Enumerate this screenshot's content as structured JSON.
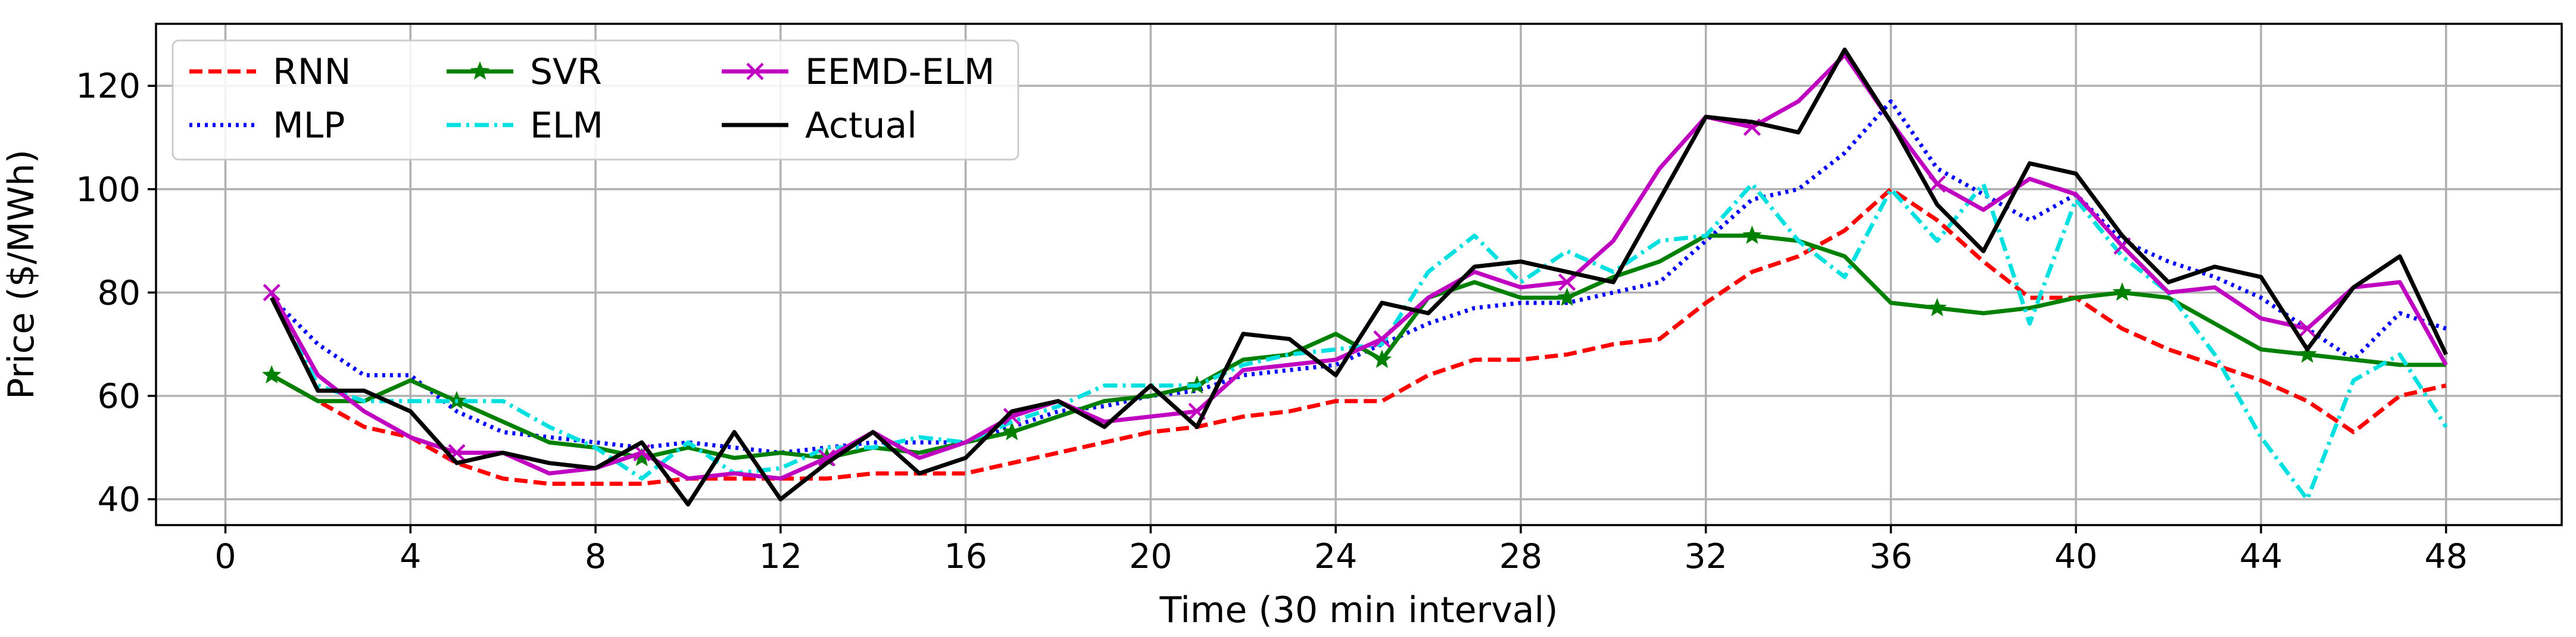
{
  "chart_data": {
    "type": "line",
    "title": "",
    "xlabel": "Time (30 min interval)",
    "ylabel": "Price ($/MWh)",
    "xlim": [
      -1.5,
      50.5
    ],
    "ylim": [
      35,
      132
    ],
    "xticks": [
      0,
      4,
      8,
      12,
      16,
      20,
      24,
      28,
      32,
      36,
      40,
      44,
      48
    ],
    "yticks": [
      40,
      60,
      80,
      100,
      120
    ],
    "grid": true,
    "legend_position": "top-left",
    "x": [
      1,
      2,
      3,
      4,
      5,
      6,
      7,
      8,
      9,
      10,
      11,
      12,
      13,
      14,
      15,
      16,
      17,
      18,
      19,
      20,
      21,
      22,
      23,
      24,
      25,
      26,
      27,
      28,
      29,
      30,
      31,
      32,
      33,
      34,
      35,
      36,
      37,
      38,
      39,
      40,
      41,
      42,
      43,
      44,
      45,
      46,
      47,
      48
    ],
    "series": [
      {
        "name": "RNN",
        "color": "#ff0000",
        "style": "dashed",
        "marker": "none",
        "values": [
          64,
          59,
          54,
          52,
          47,
          44,
          43,
          43,
          43,
          44,
          44,
          44,
          44,
          45,
          45,
          45,
          47,
          49,
          51,
          53,
          54,
          56,
          57,
          59,
          59,
          64,
          67,
          67,
          68,
          70,
          71,
          78,
          84,
          87,
          92,
          100,
          94,
          86,
          79,
          79,
          73,
          69,
          66,
          63,
          59,
          53,
          60,
          62
        ]
      },
      {
        "name": "MLP",
        "color": "#0000ff",
        "style": "dotted",
        "marker": "none",
        "values": [
          79,
          70,
          64,
          64,
          57,
          53,
          52,
          51,
          50,
          51,
          50,
          49,
          50,
          51,
          51,
          51,
          54,
          57,
          58,
          60,
          61,
          64,
          65,
          66,
          70,
          74,
          77,
          78,
          78,
          80,
          82,
          90,
          98,
          100,
          107,
          117,
          104,
          99,
          94,
          99,
          90,
          86,
          83,
          79,
          73,
          67,
          76,
          73
        ]
      },
      {
        "name": "SVR",
        "color": "#008000",
        "style": "solid",
        "marker": "star",
        "values": [
          64,
          59,
          59,
          63,
          59,
          55,
          51,
          50,
          48,
          50,
          48,
          49,
          48,
          50,
          49,
          51,
          53,
          56,
          59,
          60,
          62,
          67,
          68,
          72,
          67,
          79,
          82,
          79,
          79,
          83,
          86,
          91,
          91,
          90,
          87,
          78,
          77,
          76,
          77,
          79,
          80,
          79,
          74,
          69,
          68,
          67,
          66,
          66
        ]
      },
      {
        "name": "ELM",
        "color": "#00e0e0",
        "style": "dashdot",
        "marker": "none",
        "values": [
          80,
          62,
          59,
          59,
          59,
          59,
          54,
          50,
          44,
          51,
          45,
          46,
          50,
          50,
          52,
          51,
          55,
          58,
          62,
          62,
          62,
          66,
          68,
          69,
          70,
          84,
          91,
          82,
          88,
          84,
          90,
          91,
          101,
          90,
          83,
          100,
          90,
          101,
          74,
          98,
          87,
          80,
          68,
          52,
          40,
          63,
          68,
          54
        ]
      },
      {
        "name": "EEMD-ELM",
        "color": "#c000c0",
        "style": "solid",
        "marker": "x",
        "values": [
          80,
          64,
          57,
          52,
          49,
          49,
          45,
          46,
          49,
          44,
          45,
          44,
          48,
          53,
          48,
          51,
          56,
          59,
          55,
          56,
          57,
          65,
          66,
          67,
          71,
          79,
          84,
          81,
          82,
          90,
          104,
          114,
          112,
          117,
          126,
          113,
          101,
          96,
          102,
          99,
          89,
          80,
          81,
          75,
          73,
          81,
          82,
          66
        ]
      },
      {
        "name": "Actual",
        "color": "#000000",
        "style": "solid",
        "marker": "none",
        "values": [
          79,
          61,
          61,
          57,
          47,
          49,
          47,
          46,
          51,
          39,
          53,
          40,
          47,
          53,
          45,
          48,
          57,
          59,
          54,
          62,
          54,
          72,
          71,
          64,
          78,
          76,
          85,
          86,
          84,
          82,
          98,
          114,
          113,
          111,
          127,
          113,
          97,
          88,
          105,
          103,
          91,
          82,
          85,
          83,
          69,
          81,
          87,
          68
        ]
      }
    ]
  }
}
